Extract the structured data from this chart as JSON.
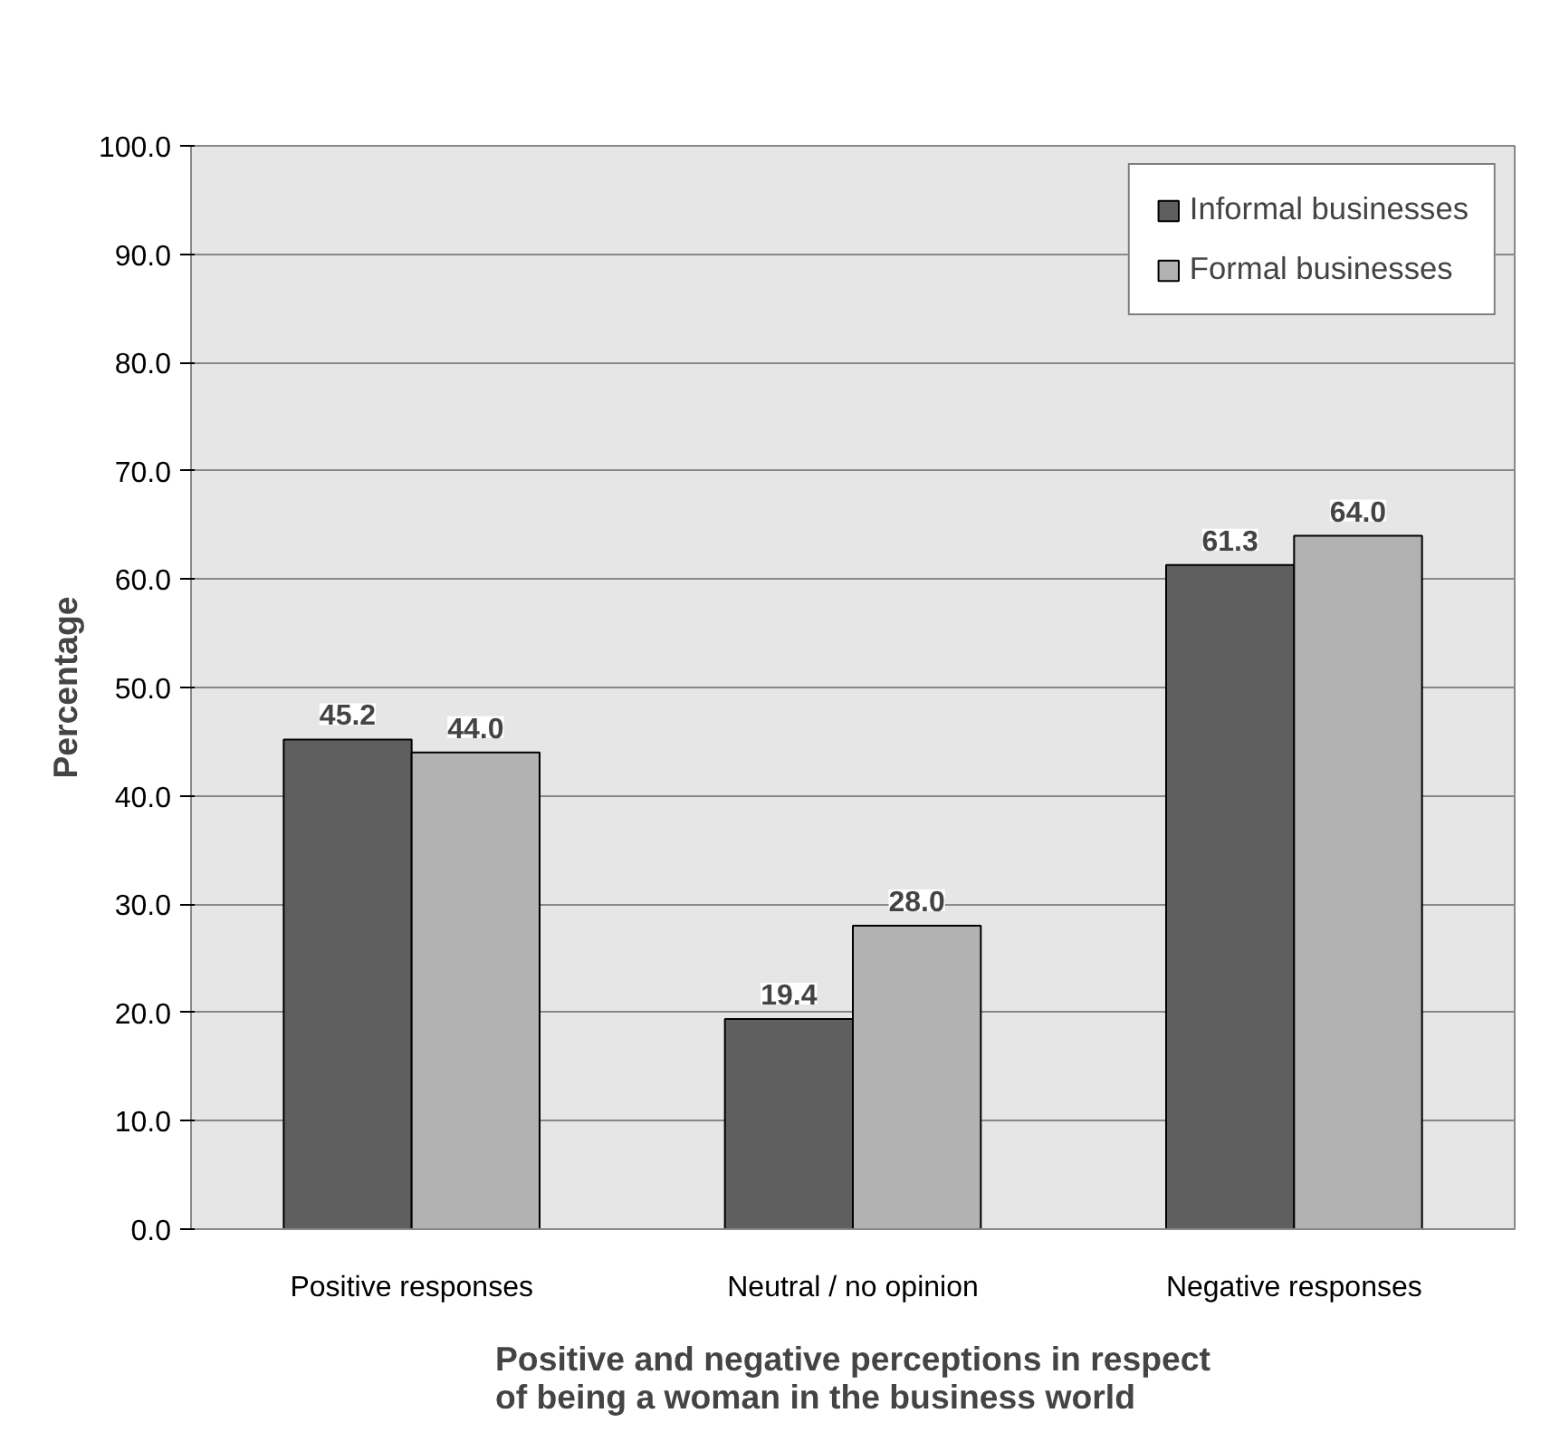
{
  "chart_data": {
    "type": "bar",
    "title": "Positive and negative perceptions in respect of being a woman in the business world",
    "ylabel": "Percentage",
    "categories": [
      "Positive responses",
      "Neutral / no opinion",
      "Negative responses"
    ],
    "series": [
      {
        "name": "Informal businesses",
        "color": "#5f5f5f",
        "values": [
          45.2,
          19.4,
          61.3
        ],
        "value_labels": [
          "45.2",
          "19.4",
          "61.3"
        ]
      },
      {
        "name": "Formal businesses",
        "color": "#b2b2b2",
        "values": [
          44.0,
          28.0,
          64.0
        ],
        "value_labels": [
          "44.0",
          "28.0",
          "64.0"
        ]
      }
    ],
    "ylim": [
      0,
      100
    ],
    "yticks": [
      {
        "value": 0,
        "label": "0.0"
      },
      {
        "value": 10,
        "label": "10.0"
      },
      {
        "value": 20,
        "label": "20.0"
      },
      {
        "value": 30,
        "label": "30.0"
      },
      {
        "value": 40,
        "label": "40.0"
      },
      {
        "value": 50,
        "label": "50.0"
      },
      {
        "value": 60,
        "label": "60.0"
      },
      {
        "value": 70,
        "label": "70.0"
      },
      {
        "value": 80,
        "label": "80.0"
      },
      {
        "value": 90,
        "label": "90.0"
      },
      {
        "value": 100,
        "label": "100.0"
      }
    ],
    "grid": "y",
    "legend": "top right"
  }
}
